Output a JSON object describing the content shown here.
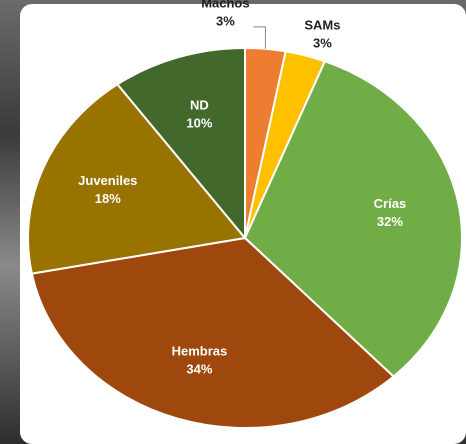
{
  "chart_data": {
    "type": "pie",
    "categories": [
      "Machos",
      "SAMs",
      "Crías",
      "Hembras",
      "Juveniles",
      "ND"
    ],
    "values": [
      3,
      3,
      32,
      34,
      18,
      10
    ],
    "value_labels": [
      "3%",
      "3%",
      "32%",
      "34%",
      "18%",
      "10%"
    ],
    "colors": [
      "#ed7d31",
      "#ffc000",
      "#70ad47",
      "#9e480e",
      "#997300",
      "#43682b"
    ]
  }
}
